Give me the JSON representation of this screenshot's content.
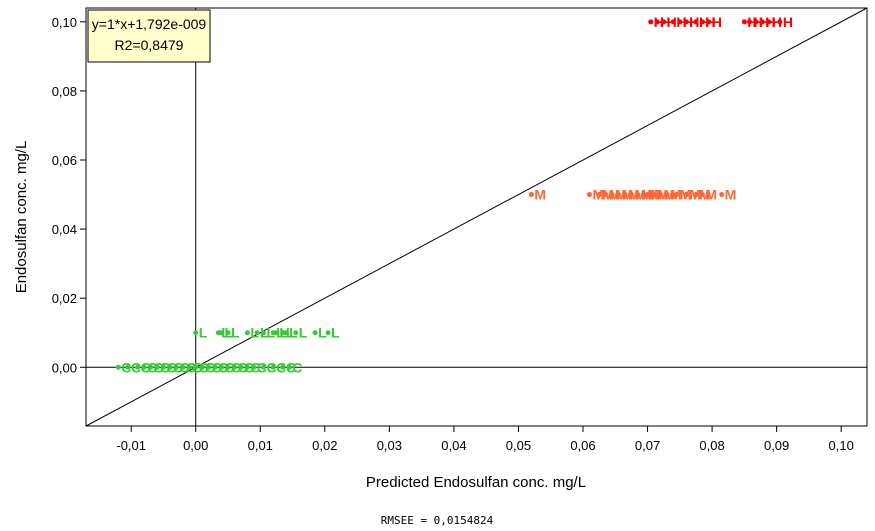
{
  "chart_data": {
    "type": "scatter",
    "xlabel": "Predicted Endosulfan conc. mg/L",
    "ylabel": "Endosulfan conc. mg/L",
    "xlim": [
      -0.017,
      0.104
    ],
    "ylim": [
      -0.017,
      0.104
    ],
    "x_ticks": [
      -0.01,
      0.0,
      0.01,
      0.02,
      0.03,
      0.04,
      0.05,
      0.06,
      0.07,
      0.08,
      0.09,
      0.1
    ],
    "x_tick_labels": [
      "-0,01",
      "0,00",
      "0,01",
      "0,02",
      "0,03",
      "0,04",
      "0,05",
      "0,06",
      "0,07",
      "0,08",
      "0,09",
      "0,10"
    ],
    "y_ticks": [
      0.0,
      0.02,
      0.04,
      0.06,
      0.08,
      0.1
    ],
    "y_tick_labels": [
      "0,00",
      "0,02",
      "0,04",
      "0,06",
      "0,08",
      "0,10"
    ],
    "grid": false,
    "fit_line": {
      "slope": 1,
      "intercept": 1.792e-09
    },
    "equation_box": {
      "line1": "y=1*x+1,792e-009",
      "line2": "R2=0,8479",
      "placement": "top-left"
    },
    "footer_text": "RMSEE = 0,0154824",
    "series": [
      {
        "label": "C",
        "color": "#33cc33",
        "y": 0.0,
        "x": [
          -0.012,
          -0.0105,
          -0.009,
          -0.008,
          -0.007,
          -0.006,
          -0.005,
          -0.004,
          -0.003,
          -0.002,
          -0.001,
          0.0,
          0.001,
          0.002,
          0.003,
          0.004,
          0.005,
          0.006,
          0.007,
          0.008,
          0.009,
          0.0105,
          0.012,
          0.0135,
          0.0145
        ]
      },
      {
        "label": "L",
        "color": "#33cc33",
        "y": 0.01,
        "x": [
          0.0,
          0.0035,
          0.004,
          0.005,
          0.008,
          0.0095,
          0.0105,
          0.012,
          0.0125,
          0.0135,
          0.014,
          0.0155,
          0.0185,
          0.0205
        ]
      },
      {
        "label": "M",
        "color": "#ff6633",
        "y": 0.05,
        "x": [
          0.052,
          0.061,
          0.0625,
          0.0635,
          0.0645,
          0.0655,
          0.0665,
          0.0675,
          0.0685,
          0.0695,
          0.07,
          0.071,
          0.072,
          0.073,
          0.0745,
          0.076,
          0.0775,
          0.0785,
          0.0815
        ]
      },
      {
        "label": "H",
        "color": "#ff0000",
        "y": 0.1,
        "x": [
          0.0705,
          0.0715,
          0.0725,
          0.074,
          0.075,
          0.076,
          0.0775,
          0.0785,
          0.0795,
          0.085,
          0.0858,
          0.0868,
          0.0878,
          0.0888,
          0.0905
        ]
      }
    ]
  }
}
